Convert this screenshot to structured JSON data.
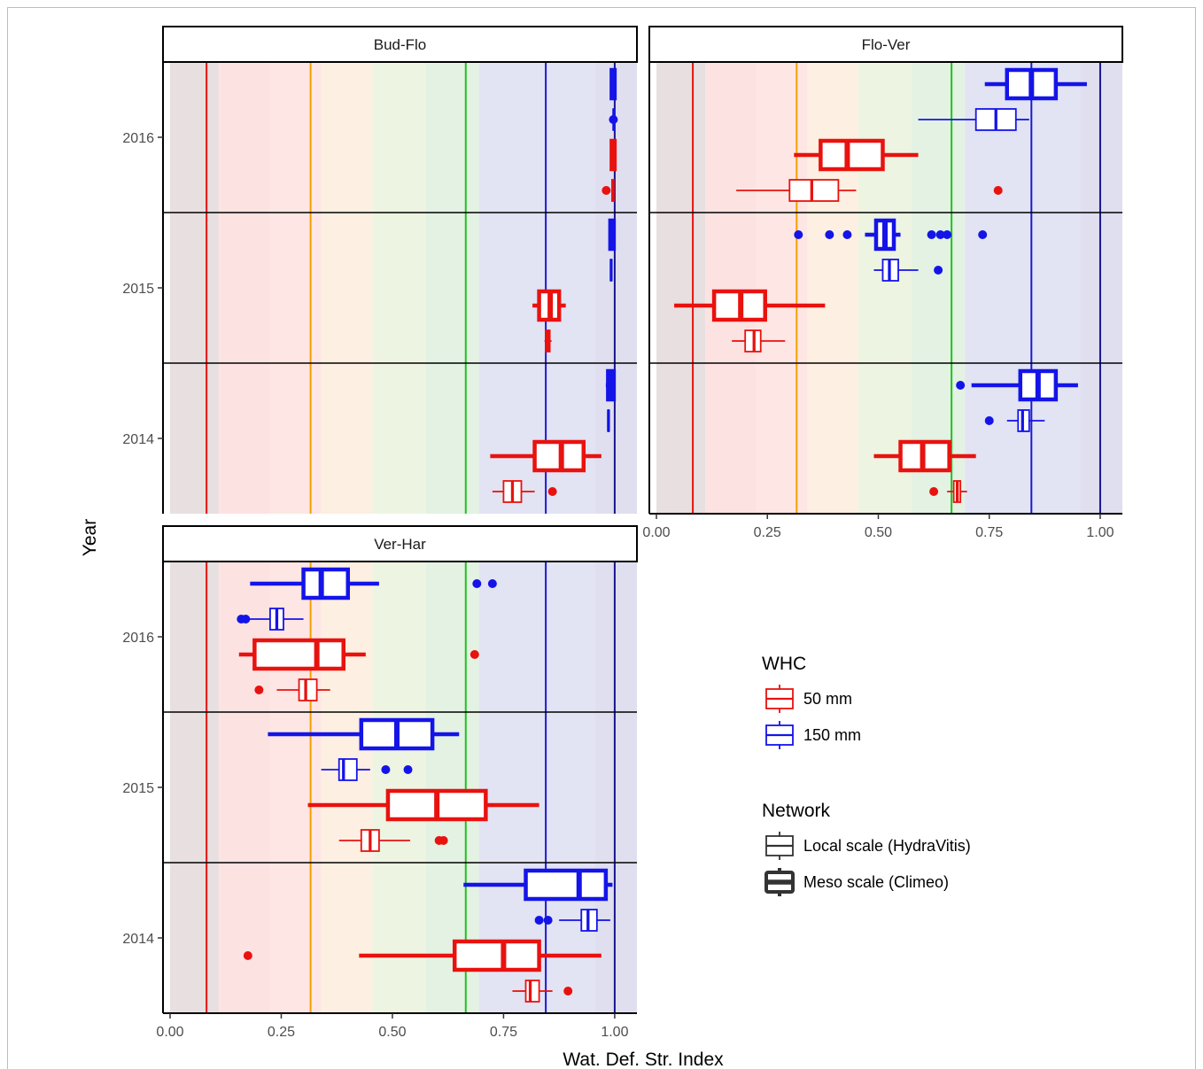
{
  "chart_data": {
    "type": "boxplot",
    "xlabel": "Wat. Def. Str. Index",
    "ylabel": "Year",
    "xlim": [
      0,
      1.05
    ],
    "x_ticks": [
      "0.00",
      "0.25",
      "0.50",
      "0.75",
      "1.00"
    ],
    "y_ticks": [
      "2014",
      "2015",
      "2016"
    ],
    "grid": false,
    "background_bands": [
      {
        "from": 0.0,
        "to": 0.11,
        "color": "#e8dfe1"
      },
      {
        "from": 0.11,
        "to": 0.225,
        "color": "#fde2e2"
      },
      {
        "from": 0.225,
        "to": 0.34,
        "color": "#fde6e3"
      },
      {
        "from": 0.34,
        "to": 0.455,
        "color": "#fdefe1"
      },
      {
        "from": 0.455,
        "to": 0.575,
        "color": "#eef4e2"
      },
      {
        "from": 0.575,
        "to": 0.695,
        "color": "#e3f2e3"
      },
      {
        "from": 0.695,
        "to": 0.955,
        "color": "#e2e3f3"
      },
      {
        "from": 0.955,
        "to": 1.05,
        "color": "#dfdff0"
      }
    ],
    "threshold_lines": [
      {
        "x": 0.082,
        "color": "#e4130f"
      },
      {
        "x": 0.316,
        "color": "#f5a000"
      },
      {
        "x": 0.665,
        "color": "#1ec41e"
      },
      {
        "x": 0.845,
        "color": "#1b1bd0"
      },
      {
        "x": 1.0,
        "color": "#161691"
      }
    ],
    "legend": {
      "position": "right",
      "whc": {
        "title": "WHC",
        "items": [
          {
            "label": "50 mm",
            "color": "#e8120f"
          },
          {
            "label": "150 mm",
            "color": "#1414e8"
          }
        ]
      },
      "network": {
        "title": "Network",
        "items": [
          {
            "label": "Local scale (HydraVitis)",
            "style": "thin"
          },
          {
            "label": "Meso scale (Climeo)",
            "style": "thick"
          }
        ]
      }
    },
    "panels": [
      {
        "name": "Bud-Flo",
        "series": [
          {
            "year": "2016",
            "whc": "150 mm",
            "network": "Meso scale (Climeo)",
            "min": 0.99,
            "q1": 0.993,
            "median": 0.997,
            "q3": 1.0,
            "max": 1.0,
            "outliers": []
          },
          {
            "year": "2016",
            "whc": "150 mm",
            "network": "Local scale (HydraVitis)",
            "min": 0.996,
            "q1": 0.997,
            "median": 0.998,
            "q3": 0.999,
            "max": 1.0,
            "outliers": [
              0.997
            ]
          },
          {
            "year": "2016",
            "whc": "50 mm",
            "network": "Meso scale (Climeo)",
            "min": 0.99,
            "q1": 0.993,
            "median": 0.997,
            "q3": 1.0,
            "max": 1.0,
            "outliers": []
          },
          {
            "year": "2016",
            "whc": "50 mm",
            "network": "Local scale (HydraVitis)",
            "min": 0.993,
            "q1": 0.994,
            "median": 0.996,
            "q3": 0.998,
            "max": 0.999,
            "outliers": [
              0.981
            ]
          },
          {
            "year": "2015",
            "whc": "150 mm",
            "network": "Meso scale (Climeo)",
            "min": 0.986,
            "q1": 0.99,
            "median": 0.994,
            "q3": 0.998,
            "max": 1.0,
            "outliers": []
          },
          {
            "year": "2015",
            "whc": "150 mm",
            "network": "Local scale (HydraVitis)",
            "min": 0.99,
            "q1": 0.991,
            "median": 0.992,
            "q3": 0.993,
            "max": 0.994,
            "outliers": []
          },
          {
            "year": "2015",
            "whc": "50 mm",
            "network": "Meso scale (Climeo)",
            "min": 0.815,
            "q1": 0.83,
            "median": 0.855,
            "q3": 0.875,
            "max": 0.89,
            "outliers": []
          },
          {
            "year": "2015",
            "whc": "50 mm",
            "network": "Local scale (HydraVitis)",
            "min": 0.842,
            "q1": 0.845,
            "median": 0.85,
            "q3": 0.854,
            "max": 0.858,
            "outliers": []
          },
          {
            "year": "2014",
            "whc": "150 mm",
            "network": "Meso scale (Climeo)",
            "min": 0.98,
            "q1": 0.985,
            "median": 0.992,
            "q3": 0.998,
            "max": 1.0,
            "outliers": []
          },
          {
            "year": "2014",
            "whc": "150 mm",
            "network": "Local scale (HydraVitis)",
            "min": 0.984,
            "q1": 0.985,
            "median": 0.986,
            "q3": 0.987,
            "max": 0.988,
            "outliers": []
          },
          {
            "year": "2014",
            "whc": "50 mm",
            "network": "Meso scale (Climeo)",
            "min": 0.72,
            "q1": 0.82,
            "median": 0.88,
            "q3": 0.93,
            "max": 0.97,
            "outliers": []
          },
          {
            "year": "2014",
            "whc": "50 mm",
            "network": "Local scale (HydraVitis)",
            "min": 0.725,
            "q1": 0.75,
            "median": 0.77,
            "q3": 0.79,
            "max": 0.82,
            "outliers": [
              0.86
            ]
          }
        ]
      },
      {
        "name": "Flo-Ver",
        "series": [
          {
            "year": "2016",
            "whc": "150 mm",
            "network": "Meso scale (Climeo)",
            "min": 0.74,
            "q1": 0.79,
            "median": 0.845,
            "q3": 0.9,
            "max": 0.97,
            "outliers": []
          },
          {
            "year": "2016",
            "whc": "150 mm",
            "network": "Local scale (HydraVitis)",
            "min": 0.59,
            "q1": 0.72,
            "median": 0.765,
            "q3": 0.81,
            "max": 0.84,
            "outliers": []
          },
          {
            "year": "2016",
            "whc": "50 mm",
            "network": "Meso scale (Climeo)",
            "min": 0.31,
            "q1": 0.37,
            "median": 0.43,
            "q3": 0.51,
            "max": 0.59,
            "outliers": []
          },
          {
            "year": "2016",
            "whc": "50 mm",
            "network": "Local scale (HydraVitis)",
            "min": 0.18,
            "q1": 0.3,
            "median": 0.35,
            "q3": 0.41,
            "max": 0.45,
            "outliers": [
              0.77
            ]
          },
          {
            "year": "2015",
            "whc": "150 mm",
            "network": "Meso scale (Climeo)",
            "min": 0.47,
            "q1": 0.495,
            "median": 0.515,
            "q3": 0.535,
            "max": 0.55,
            "outliers": [
              0.32,
              0.39,
              0.43,
              0.62,
              0.64,
              0.655,
              0.735
            ]
          },
          {
            "year": "2015",
            "whc": "150 mm",
            "network": "Local scale (HydraVitis)",
            "min": 0.49,
            "q1": 0.51,
            "median": 0.525,
            "q3": 0.545,
            "max": 0.59,
            "outliers": [
              0.635
            ]
          },
          {
            "year": "2015",
            "whc": "50 mm",
            "network": "Meso scale (Climeo)",
            "min": 0.04,
            "q1": 0.13,
            "median": 0.19,
            "q3": 0.245,
            "max": 0.38,
            "outliers": []
          },
          {
            "year": "2015",
            "whc": "50 mm",
            "network": "Local scale (HydraVitis)",
            "min": 0.17,
            "q1": 0.2,
            "median": 0.22,
            "q3": 0.235,
            "max": 0.29,
            "outliers": []
          },
          {
            "year": "2014",
            "whc": "150 mm",
            "network": "Meso scale (Climeo)",
            "min": 0.71,
            "q1": 0.82,
            "median": 0.86,
            "q3": 0.9,
            "max": 0.95,
            "outliers": [
              0.685
            ]
          },
          {
            "year": "2014",
            "whc": "150 mm",
            "network": "Local scale (HydraVitis)",
            "min": 0.79,
            "q1": 0.815,
            "median": 0.825,
            "q3": 0.84,
            "max": 0.875,
            "outliers": [
              0.75
            ]
          },
          {
            "year": "2014",
            "whc": "50 mm",
            "network": "Meso scale (Climeo)",
            "min": 0.49,
            "q1": 0.55,
            "median": 0.6,
            "q3": 0.66,
            "max": 0.72,
            "outliers": []
          },
          {
            "year": "2014",
            "whc": "50 mm",
            "network": "Local scale (HydraVitis)",
            "min": 0.655,
            "q1": 0.67,
            "median": 0.678,
            "q3": 0.685,
            "max": 0.7,
            "outliers": [
              0.625
            ]
          }
        ]
      },
      {
        "name": "Ver-Har",
        "series": [
          {
            "year": "2016",
            "whc": "150 mm",
            "network": "Meso scale (Climeo)",
            "min": 0.18,
            "q1": 0.3,
            "median": 0.34,
            "q3": 0.4,
            "max": 0.47,
            "outliers": [
              0.69,
              0.725
            ]
          },
          {
            "year": "2016",
            "whc": "150 mm",
            "network": "Local scale (HydraVitis)",
            "min": 0.17,
            "q1": 0.225,
            "median": 0.24,
            "q3": 0.255,
            "max": 0.3,
            "outliers": [
              0.16,
              0.17
            ]
          },
          {
            "year": "2016",
            "whc": "50 mm",
            "network": "Meso scale (Climeo)",
            "min": 0.155,
            "q1": 0.19,
            "median": 0.33,
            "q3": 0.39,
            "max": 0.44,
            "outliers": [
              0.685
            ]
          },
          {
            "year": "2016",
            "whc": "50 mm",
            "network": "Local scale (HydraVitis)",
            "min": 0.24,
            "q1": 0.29,
            "median": 0.305,
            "q3": 0.33,
            "max": 0.36,
            "outliers": [
              0.2
            ]
          },
          {
            "year": "2015",
            "whc": "150 mm",
            "network": "Meso scale (Climeo)",
            "min": 0.22,
            "q1": 0.43,
            "median": 0.51,
            "q3": 0.59,
            "max": 0.65,
            "outliers": []
          },
          {
            "year": "2015",
            "whc": "150 mm",
            "network": "Local scale (HydraVitis)",
            "min": 0.34,
            "q1": 0.38,
            "median": 0.39,
            "q3": 0.42,
            "max": 0.45,
            "outliers": [
              0.485,
              0.535
            ]
          },
          {
            "year": "2015",
            "whc": "50 mm",
            "network": "Meso scale (Climeo)",
            "min": 0.31,
            "q1": 0.49,
            "median": 0.6,
            "q3": 0.71,
            "max": 0.83,
            "outliers": []
          },
          {
            "year": "2015",
            "whc": "50 mm",
            "network": "Local scale (HydraVitis)",
            "min": 0.38,
            "q1": 0.43,
            "median": 0.45,
            "q3": 0.47,
            "max": 0.54,
            "outliers": [
              0.605,
              0.615
            ]
          },
          {
            "year": "2014",
            "whc": "150 mm",
            "network": "Meso scale (Climeo)",
            "min": 0.66,
            "q1": 0.8,
            "median": 0.92,
            "q3": 0.98,
            "max": 0.995,
            "outliers": []
          },
          {
            "year": "2014",
            "whc": "150 mm",
            "network": "Local scale (HydraVitis)",
            "min": 0.875,
            "q1": 0.925,
            "median": 0.94,
            "q3": 0.96,
            "max": 0.99,
            "outliers": [
              0.83,
              0.85
            ]
          },
          {
            "year": "2014",
            "whc": "50 mm",
            "network": "Meso scale (Climeo)",
            "min": 0.425,
            "q1": 0.64,
            "median": 0.75,
            "q3": 0.83,
            "max": 0.97,
            "outliers": [
              0.175
            ]
          },
          {
            "year": "2014",
            "whc": "50 mm",
            "network": "Local scale (HydraVitis)",
            "min": 0.77,
            "q1": 0.8,
            "median": 0.81,
            "q3": 0.83,
            "max": 0.86,
            "outliers": [
              0.895
            ]
          }
        ]
      }
    ]
  }
}
